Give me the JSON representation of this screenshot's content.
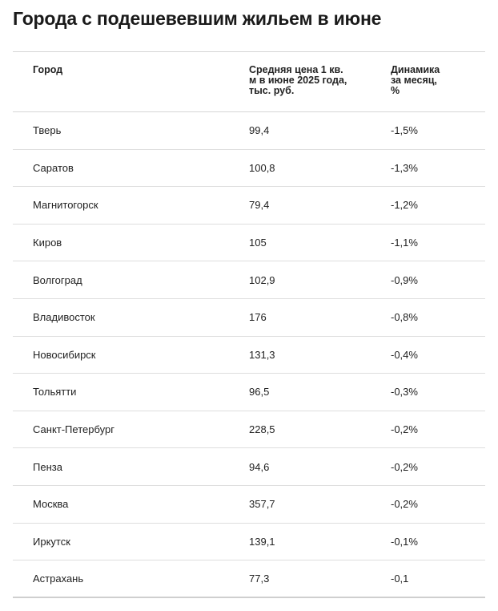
{
  "header": {
    "title": "Города с подешевевшим жильем в июне"
  },
  "table": {
    "columns": [
      "Город",
      "Средняя цена 1 кв. м в июне 2025 года, тыс. руб.",
      "Динамика за месяц, %"
    ],
    "rows": [
      [
        "Тверь",
        "99,4",
        "-1,5%"
      ],
      [
        "Саратов",
        "100,8",
        "-1,3%"
      ],
      [
        "Магнитогорск",
        "79,4",
        "-1,2%"
      ],
      [
        "Киров",
        "105",
        "-1,1%"
      ],
      [
        "Волгоград",
        "102,9",
        "-0,9%"
      ],
      [
        "Владивосток",
        "176",
        "-0,8%"
      ],
      [
        "Новосибирск",
        "131,3",
        "-0,4%"
      ],
      [
        "Тольятти",
        "96,5",
        "-0,3%"
      ],
      [
        "Санкт-Петербург",
        "228,5",
        "-0,2%"
      ],
      [
        "Пенза",
        "94,6",
        "-0,2%"
      ],
      [
        "Москва",
        "357,7",
        "-0,2%"
      ],
      [
        "Иркутск",
        "139,1",
        "-0,1%"
      ],
      [
        "Астрахань",
        "77,3",
        "-0,1"
      ]
    ]
  }
}
